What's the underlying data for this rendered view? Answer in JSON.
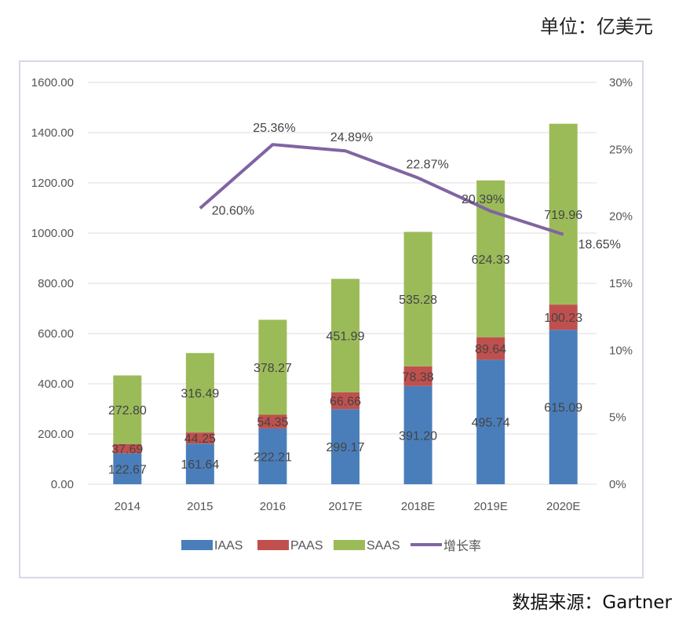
{
  "header": {
    "unit_label": "单位：亿美元"
  },
  "footer": {
    "source_label": "数据来源：Gartner"
  },
  "chart_data": {
    "type": "bar",
    "stacked": true,
    "title": "",
    "categories": [
      "2014",
      "2015",
      "2016",
      "2017E",
      "2018E",
      "2019E",
      "2020E"
    ],
    "series": [
      {
        "name": "IAAS",
        "color": "#4a7ebb",
        "values": [
          122.67,
          161.64,
          222.21,
          299.17,
          391.2,
          495.74,
          615.09
        ],
        "labels": [
          "122.67",
          "161.64",
          "222.21",
          "299.17",
          "391.20",
          "495.74",
          "615.09"
        ]
      },
      {
        "name": "PAAS",
        "color": "#c0504d",
        "values": [
          37.69,
          44.25,
          54.35,
          66.66,
          78.38,
          89.64,
          100.23
        ],
        "labels": [
          "37.69",
          "44.25",
          "54.35",
          "66.66",
          "78.38",
          "89.64",
          "100.23"
        ]
      },
      {
        "name": "SAAS",
        "color": "#9bbb59",
        "values": [
          272.8,
          316.49,
          378.27,
          451.99,
          535.28,
          624.33,
          719.96
        ],
        "labels": [
          "272.80",
          "316.49",
          "378.27",
          "451.99",
          "535.28",
          "624.33",
          "719.96"
        ]
      }
    ],
    "line_series": {
      "name": "增长率",
      "color": "#8064a2",
      "axis": "right",
      "values": [
        null,
        20.6,
        25.36,
        24.89,
        22.87,
        20.39,
        18.65
      ],
      "labels": [
        null,
        "20.60%",
        "25.36%",
        "24.89%",
        "22.87%",
        "20.39%",
        "18.65%"
      ]
    },
    "y_left": {
      "ylim": [
        0,
        1600
      ],
      "ticks": [
        "0.00",
        "200.00",
        "400.00",
        "600.00",
        "800.00",
        "1000.00",
        "1200.00",
        "1400.00",
        "1600.00"
      ]
    },
    "y_right": {
      "ylim": [
        0,
        30
      ],
      "ticks": [
        "0%",
        "5%",
        "10%",
        "15%",
        "20%",
        "25%",
        "30%"
      ]
    },
    "grid": true,
    "legend": {
      "position": "bottom",
      "items": [
        "IAAS",
        "PAAS",
        "SAAS",
        "增长率"
      ]
    }
  }
}
